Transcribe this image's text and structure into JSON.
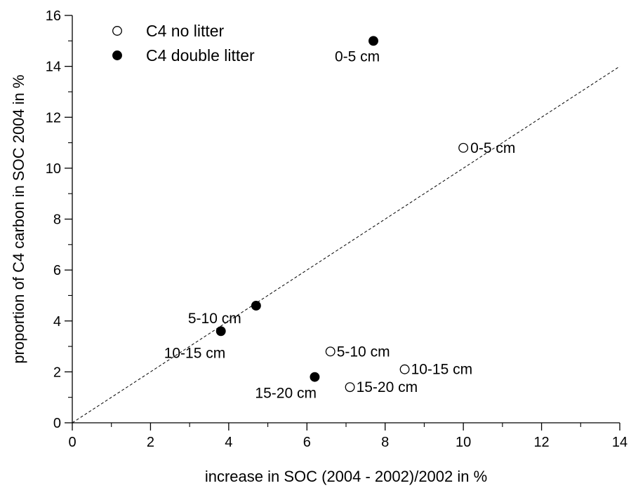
{
  "chart_data": {
    "type": "scatter",
    "xlabel": "increase in SOC (2004 - 2002)/2002 in %",
    "ylabel": "proportion of C4 carbon in SOC 2004 in %",
    "xlim": [
      0,
      14
    ],
    "ylim": [
      0,
      16
    ],
    "xticks": [
      0,
      2,
      4,
      6,
      8,
      10,
      12,
      14
    ],
    "yticks": [
      0,
      2,
      4,
      6,
      8,
      10,
      12,
      14,
      16
    ],
    "grid": false,
    "legend_position": "top-left",
    "reference_line": {
      "style": "dashed",
      "x": [
        0,
        14
      ],
      "y": [
        0,
        14
      ]
    },
    "series": [
      {
        "name": "C4 no litter",
        "marker": "open-circle",
        "points": [
          {
            "x": 10.0,
            "y": 10.8,
            "label": "0-5 cm"
          },
          {
            "x": 6.6,
            "y": 2.8,
            "label": "5-10 cm"
          },
          {
            "x": 8.5,
            "y": 2.1,
            "label": "10-15 cm"
          },
          {
            "x": 7.1,
            "y": 1.4,
            "label": "15-20 cm"
          }
        ]
      },
      {
        "name": "C4 double litter",
        "marker": "filled-circle",
        "points": [
          {
            "x": 7.7,
            "y": 15.0,
            "label": "0-5 cm"
          },
          {
            "x": 4.7,
            "y": 4.6,
            "label": "5-10 cm"
          },
          {
            "x": 3.8,
            "y": 3.6,
            "label": "10-15 cm"
          },
          {
            "x": 6.2,
            "y": 1.8,
            "label": "15-20 cm"
          }
        ]
      }
    ]
  }
}
